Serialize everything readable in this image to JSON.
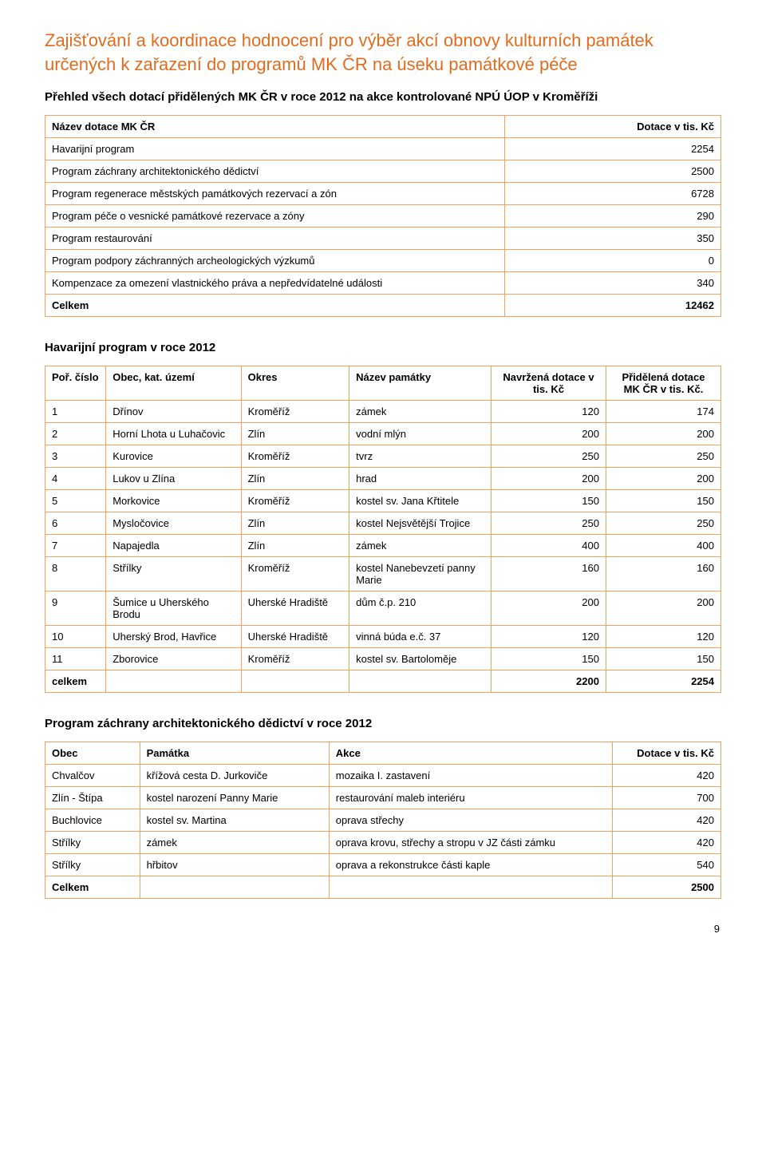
{
  "heading": "Zajišťování a koordinace hodnocení pro výběr akcí obnovy kulturních památek určených k zařazení do programů MK ČR na úseku památkové péče",
  "sub1": "Přehled všech dotací přidělených MK ČR v roce 2012 na akce kontrolované NPÚ ÚOP v Kroměříži",
  "t1": {
    "h1": "Název dotace MK ČR",
    "h2": "Dotace v tis. Kč",
    "rows": [
      {
        "n": "Havarijní program",
        "v": "2254"
      },
      {
        "n": "Program záchrany architektonického dědictví",
        "v": "2500"
      },
      {
        "n": "Program regenerace městských památkových rezervací a zón",
        "v": "6728"
      },
      {
        "n": "Program péče o vesnické památkové rezervace a zóny",
        "v": "290"
      },
      {
        "n": "Program restaurování",
        "v": "350"
      },
      {
        "n": "Program podpory záchranných archeologických výzkumů",
        "v": "0"
      },
      {
        "n": "Kompenzace za omezení vlastnického práva a nepředvídatelné události",
        "v": "340"
      }
    ],
    "totalLabel": "Celkem",
    "total": "12462"
  },
  "sub2": "Havarijní program v roce 2012",
  "t2": {
    "h1": "Poř. číslo",
    "h2": "Obec, kat. území",
    "h3": "Okres",
    "h4": "Název památky",
    "h5": "Navržená dotace v tis. Kč",
    "h6": "Přidělená dotace MK ČR v tis. Kč.",
    "rows": [
      {
        "p": "1",
        "o": "Dřínov",
        "ok": "Kroměříž",
        "n": "zámek",
        "nd": "120",
        "pd": "174"
      },
      {
        "p": "2",
        "o": "Horní Lhota u Luhačovic",
        "ok": "Zlín",
        "n": "vodní mlýn",
        "nd": "200",
        "pd": "200"
      },
      {
        "p": "3",
        "o": "Kurovice",
        "ok": "Kroměříž",
        "n": "tvrz",
        "nd": "250",
        "pd": "250"
      },
      {
        "p": "4",
        "o": "Lukov u Zlína",
        "ok": "Zlín",
        "n": "hrad",
        "nd": "200",
        "pd": "200"
      },
      {
        "p": "5",
        "o": "Morkovice",
        "ok": "Kroměříž",
        "n": "kostel sv. Jana Křtitele",
        "nd": "150",
        "pd": "150"
      },
      {
        "p": "6",
        "o": "Mysločovice",
        "ok": "Zlín",
        "n": "kostel Nejsvětější Trojice",
        "nd": "250",
        "pd": "250"
      },
      {
        "p": "7",
        "o": "Napajedla",
        "ok": "Zlín",
        "n": "zámek",
        "nd": "400",
        "pd": "400"
      },
      {
        "p": "8",
        "o": "Střílky",
        "ok": "Kroměříž",
        "n": "kostel Nanebevzetí panny Marie",
        "nd": "160",
        "pd": "160"
      },
      {
        "p": "9",
        "o": "Šumice u Uherského Brodu",
        "ok": "Uherské Hradiště",
        "n": "dům č.p. 210",
        "nd": "200",
        "pd": "200"
      },
      {
        "p": "10",
        "o": "Uherský Brod, Havřice",
        "ok": "Uherské Hradiště",
        "n": "vinná búda e.č. 37",
        "nd": "120",
        "pd": "120"
      },
      {
        "p": "11",
        "o": "Zborovice",
        "ok": "Kroměříž",
        "n": "kostel sv. Bartoloměje",
        "nd": "150",
        "pd": "150"
      }
    ],
    "totalLabel": "celkem",
    "totalN": "2200",
    "totalP": "2254"
  },
  "sub3": "Program záchrany architektonického dědictví v roce 2012",
  "t3": {
    "h1": "Obec",
    "h2": "Památka",
    "h3": "Akce",
    "h4": "Dotace v tis. Kč",
    "rows": [
      {
        "o": "Chvalčov",
        "p": "křížová cesta D. Jurkoviče",
        "a": "mozaika I. zastavení",
        "d": "420"
      },
      {
        "o": "Zlín - Štípa",
        "p": "kostel narození Panny Marie",
        "a": "restaurování maleb interiéru",
        "d": "700"
      },
      {
        "o": "Buchlovice",
        "p": "kostel sv. Martina",
        "a": "oprava střechy",
        "d": "420"
      },
      {
        "o": "Střílky",
        "p": "zámek",
        "a": "oprava krovu, střechy a stropu v JZ části zámku",
        "d": "420"
      },
      {
        "o": "Střílky",
        "p": "hřbitov",
        "a": "oprava a rekonstrukce části kaple",
        "d": "540"
      }
    ],
    "totalLabel": "Celkem",
    "total": "2500"
  },
  "pageNum": "9"
}
